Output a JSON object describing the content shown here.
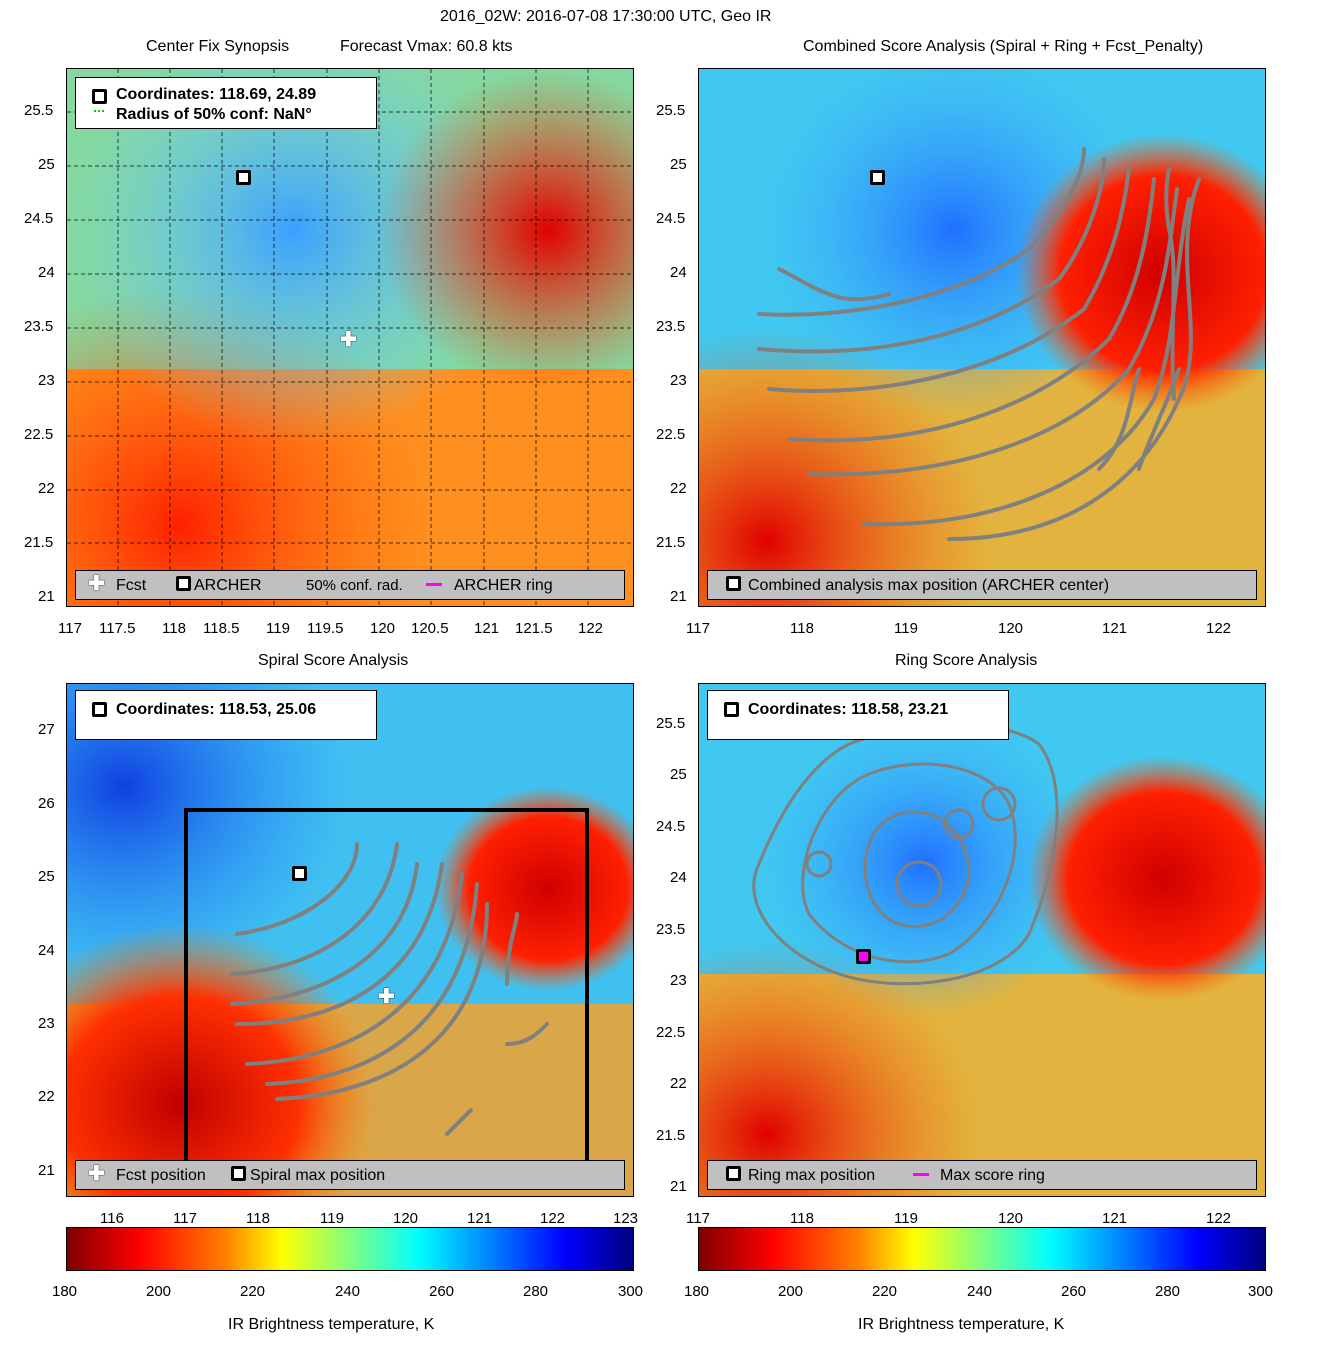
{
  "figure": {
    "suptitle": "2016_02W: 2016-07-08 17:30:00 UTC, Geo IR"
  },
  "panels": {
    "synopsis": {
      "title_left": "Center Fix Synopsis",
      "title_right": "Forecast Vmax: 60.8 kts",
      "coord_line1": "Coordinates: 118.69, 24.89",
      "coord_line2": "Radius of 50% conf: NaN°",
      "xticks": [
        "117",
        "117.5",
        "118",
        "118.5",
        "119",
        "119.5",
        "120",
        "120.5",
        "121",
        "121.5",
        "122"
      ],
      "yticks": [
        "25.5",
        "25",
        "24.5",
        "24",
        "23.5",
        "23",
        "22.5",
        "22",
        "21.5",
        "21"
      ],
      "legend": [
        "Fcst",
        "ARCHER",
        "50% conf. rad.",
        "ARCHER ring"
      ]
    },
    "combined": {
      "title": "Combined Score Analysis (Spiral + Ring + Fcst_Penalty)",
      "xticks": [
        "117",
        "118",
        "119",
        "120",
        "121",
        "122"
      ],
      "yticks": [
        "25.5",
        "25",
        "24.5",
        "24",
        "23.5",
        "23",
        "22.5",
        "22",
        "21.5",
        "21"
      ],
      "legend": [
        "Combined analysis max position (ARCHER center)"
      ]
    },
    "spiral": {
      "title": "Spiral Score Analysis",
      "coord_line1": "Coordinates: 118.53, 25.06",
      "xticks": [
        "116",
        "117",
        "118",
        "119",
        "120",
        "121",
        "122",
        "123"
      ],
      "yticks": [
        "27",
        "26",
        "25",
        "24",
        "23",
        "22",
        "21"
      ],
      "legend": [
        "Fcst position",
        "Spiral max position"
      ]
    },
    "ring": {
      "title": "Ring Score Analysis",
      "coord_line1": "Coordinates: 118.58, 23.21",
      "xticks": [
        "117",
        "118",
        "119",
        "120",
        "121",
        "122"
      ],
      "yticks": [
        "25.5",
        "25",
        "24.5",
        "24",
        "23.5",
        "23",
        "22.5",
        "22",
        "21.5",
        "21"
      ],
      "legend": [
        "Ring max position",
        "Max score ring"
      ]
    }
  },
  "colorbars": {
    "ticks": [
      "180",
      "200",
      "220",
      "240",
      "260",
      "280",
      "300"
    ],
    "label": "IR Brightness temperature, K"
  },
  "colors": {
    "ring_magenta": "#ff00ff",
    "conf_green": "#00cc00",
    "contour_gray": "#808080"
  }
}
